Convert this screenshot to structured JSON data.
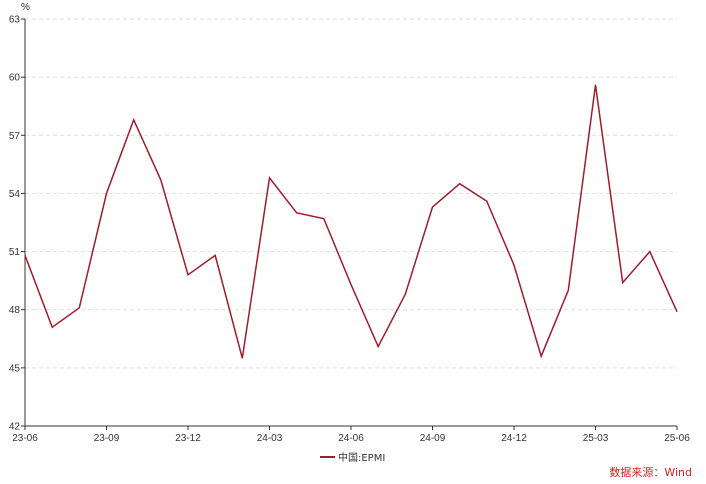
{
  "chart_data": {
    "type": "line",
    "unit_label": "%",
    "x": [
      "23-06",
      "23-07",
      "23-08",
      "23-09",
      "23-10",
      "23-11",
      "23-12",
      "24-01",
      "24-02",
      "24-03",
      "24-04",
      "24-05",
      "24-06",
      "24-07",
      "24-08",
      "24-09",
      "24-10",
      "24-11",
      "24-12",
      "25-01",
      "25-02",
      "25-03",
      "25-04",
      "25-05",
      "25-06"
    ],
    "x_tick_labels": [
      "23-06",
      "23-09",
      "23-12",
      "24-03",
      "24-06",
      "24-09",
      "24-12",
      "25-03",
      "25-06"
    ],
    "series": [
      {
        "name": "中国:EPMI",
        "color": "#a01c2c",
        "values": [
          50.8,
          47.1,
          48.1,
          54.0,
          57.8,
          54.7,
          49.8,
          50.8,
          45.5,
          54.8,
          53.0,
          52.7,
          49.3,
          46.1,
          48.8,
          53.3,
          54.5,
          53.6,
          50.3,
          45.6,
          49.0,
          59.6,
          49.4,
          51.0,
          47.9
        ]
      }
    ],
    "ylim": [
      42,
      63
    ],
    "y_ticks": [
      42,
      45,
      48,
      51,
      54,
      57,
      60,
      63
    ],
    "grid": true,
    "legend_position": "bottom-center"
  },
  "source": {
    "text": "数据来源：Wind",
    "color": "#e02020"
  }
}
